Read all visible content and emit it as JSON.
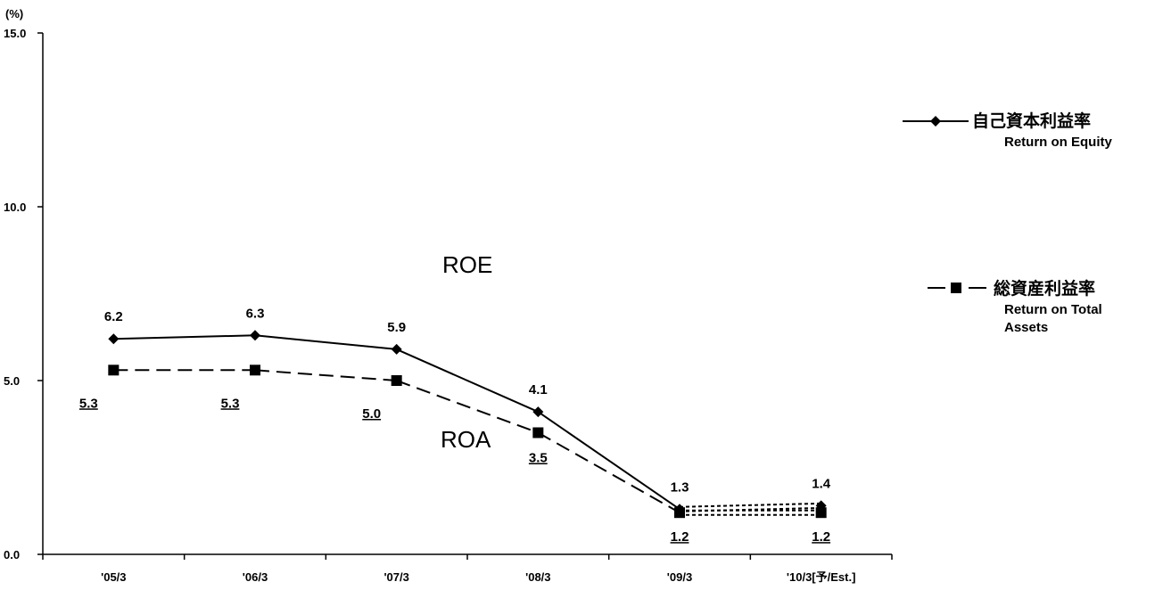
{
  "chart_data": {
    "type": "line",
    "unit_label": "(%)",
    "categories": [
      "'05/3",
      "'06/3",
      "'07/3",
      "'08/3",
      "'09/3",
      "'10/3[予/Est.]"
    ],
    "y_ticks": [
      "15.0",
      "10.0",
      "5.0",
      "0.0"
    ],
    "ylim": [
      0,
      15
    ],
    "grid": false,
    "legend_position": "right",
    "series": [
      {
        "key": "roe",
        "name_ja": "自己資本利益率",
        "name_en": "Return on Equity",
        "marker": "diamond",
        "line_style": "solid",
        "values": [
          6.2,
          6.3,
          5.9,
          4.1,
          1.3,
          1.4
        ],
        "labels": [
          "6.2",
          "6.3",
          "5.9",
          "4.1",
          "1.3",
          "1.4"
        ]
      },
      {
        "key": "roa",
        "name_ja": "総資産利益率",
        "name_en": [
          "Return on Total",
          "Assets"
        ],
        "marker": "square",
        "line_style": "dashed",
        "values": [
          5.3,
          5.3,
          5.0,
          3.5,
          1.2,
          1.2
        ],
        "labels": [
          "5.3",
          "5.3",
          "5.0",
          "3.5",
          "1.2",
          "1.2"
        ]
      }
    ],
    "estimate_segment": "dotted",
    "annotations": [
      "ROE",
      "ROA"
    ]
  }
}
